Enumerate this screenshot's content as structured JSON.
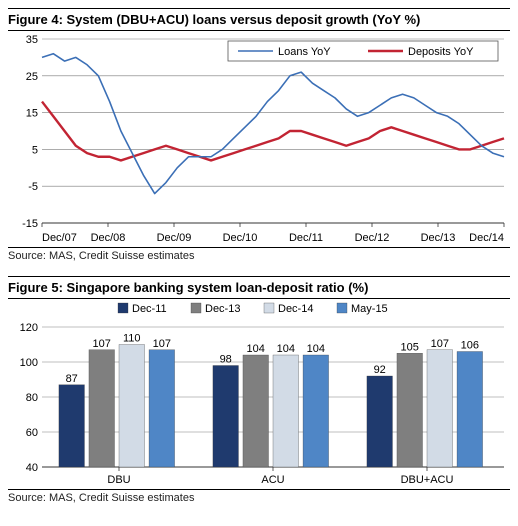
{
  "figure4": {
    "title": "Figure 4: System (DBU+ACU) loans versus deposit growth (YoY %)",
    "source": "Source: MAS, Credit Suisse estimates",
    "type": "line",
    "legend": [
      {
        "label": "Loans YoY",
        "color": "#3b6fb6"
      },
      {
        "label": "Deposits YoY",
        "color": "#c22433"
      }
    ],
    "x_labels": [
      "Dec/07",
      "Dec/08",
      "Dec/09",
      "Dec/10",
      "Dec/11",
      "Dec/12",
      "Dec/13",
      "Dec/14"
    ],
    "ylim": [
      -15,
      35
    ],
    "ytick_step": 10,
    "grid_color": "#7a7a7a",
    "axis_color": "#333333",
    "bg": "#ffffff",
    "label_fontsize": 11,
    "line_width": 1.6,
    "deposit_line_width": 2.4,
    "series_loans": [
      30,
      31,
      29,
      30,
      28,
      25,
      18,
      10,
      4,
      -2,
      -7,
      -4,
      0,
      3,
      3,
      3,
      5,
      8,
      11,
      14,
      18,
      21,
      25,
      26,
      23,
      21,
      19,
      16,
      14,
      15,
      17,
      19,
      20,
      19,
      17,
      15,
      14,
      12,
      9,
      6,
      4,
      3
    ],
    "series_deposits": [
      18,
      14,
      10,
      6,
      4,
      3,
      3,
      2,
      3,
      4,
      5,
      6,
      5,
      4,
      3,
      2,
      3,
      4,
      5,
      6,
      7,
      8,
      10,
      10,
      9,
      8,
      7,
      6,
      7,
      8,
      10,
      11,
      10,
      9,
      8,
      7,
      6,
      5,
      5,
      6,
      7,
      8
    ]
  },
  "figure5": {
    "title": "Figure 5: Singapore banking system loan-deposit ratio (%)",
    "source": "Source: MAS, Credit Suisse estimates",
    "type": "grouped-bar",
    "legend": [
      {
        "label": "Dec-11",
        "color": "#1f3a6e"
      },
      {
        "label": "Dec-13",
        "color": "#7f7f7f"
      },
      {
        "label": "Dec-14",
        "color": "#d2dbe6"
      },
      {
        "label": "May-15",
        "color": "#4f86c6"
      }
    ],
    "categories": [
      "DBU",
      "ACU",
      "DBU+ACU"
    ],
    "values": {
      "DBU": [
        87,
        107,
        110,
        107
      ],
      "ACU": [
        98,
        104,
        104,
        104
      ],
      "DBU+ACU": [
        92,
        105,
        107,
        106
      ]
    },
    "ylim": [
      40,
      120
    ],
    "ytick_step": 20,
    "grid_color": "#808080",
    "axis_color": "#333333",
    "bg": "#ffffff",
    "label_fontsize": 11,
    "bar_width": 0.85,
    "data_label_fontsize": 11,
    "data_label_color": "#000000"
  }
}
